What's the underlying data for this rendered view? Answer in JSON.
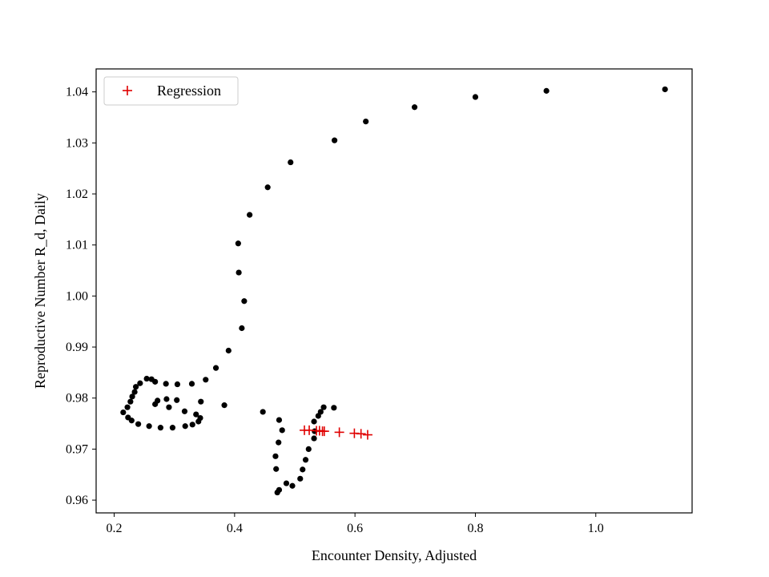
{
  "chart_data": {
    "type": "scatter",
    "xlabel": "Encounter Density, Adjusted",
    "ylabel": "Reproductive Number R_d, Daily",
    "xlim": [
      0.17,
      1.16
    ],
    "ylim": [
      0.9575,
      1.0445
    ],
    "xticks": [
      0.2,
      0.4,
      0.6,
      0.8,
      1.0
    ],
    "xtick_labels": [
      "0.2",
      "0.4",
      "0.6",
      "0.8",
      "1.0"
    ],
    "yticks": [
      0.96,
      0.97,
      0.98,
      0.99,
      1.0,
      1.01,
      1.02,
      1.03,
      1.04
    ],
    "ytick_labels": [
      "0.96",
      "0.97",
      "0.98",
      "0.99",
      "1.00",
      "1.01",
      "1.02",
      "1.03",
      "1.04"
    ],
    "grid": false,
    "legend": {
      "position": "upper-left",
      "entries": [
        "Regression"
      ]
    },
    "series": [
      {
        "marker": "dot",
        "color": "#000000",
        "points": [
          [
            1.115,
            1.0405
          ],
          [
            0.918,
            1.0402
          ],
          [
            0.8,
            1.039
          ],
          [
            0.699,
            1.037
          ],
          [
            0.618,
            1.0342
          ],
          [
            0.566,
            1.0305
          ],
          [
            0.493,
            1.0262
          ],
          [
            0.455,
            1.0213
          ],
          [
            0.425,
            1.0159
          ],
          [
            0.406,
            1.0103
          ],
          [
            0.407,
            1.0046
          ],
          [
            0.416,
            0.999
          ],
          [
            0.412,
            0.9937
          ],
          [
            0.39,
            0.9893
          ],
          [
            0.369,
            0.9859
          ],
          [
            0.352,
            0.9836
          ],
          [
            0.329,
            0.9828
          ],
          [
            0.305,
            0.9827
          ],
          [
            0.286,
            0.9828
          ],
          [
            0.268,
            0.9832
          ],
          [
            0.262,
            0.9837
          ],
          [
            0.254,
            0.9838
          ],
          [
            0.243,
            0.9829
          ],
          [
            0.236,
            0.9822
          ],
          [
            0.234,
            0.9812
          ],
          [
            0.23,
            0.9803
          ],
          [
            0.227,
            0.9793
          ],
          [
            0.222,
            0.9782
          ],
          [
            0.215,
            0.9772
          ],
          [
            0.223,
            0.9762
          ],
          [
            0.229,
            0.9756
          ],
          [
            0.24,
            0.9749
          ],
          [
            0.258,
            0.9745
          ],
          [
            0.277,
            0.9742
          ],
          [
            0.297,
            0.9742
          ],
          [
            0.318,
            0.9745
          ],
          [
            0.33,
            0.9748
          ],
          [
            0.34,
            0.9754
          ],
          [
            0.343,
            0.9761
          ],
          [
            0.336,
            0.9768
          ],
          [
            0.317,
            0.9774
          ],
          [
            0.291,
            0.9782
          ],
          [
            0.268,
            0.9788
          ],
          [
            0.272,
            0.9795
          ],
          [
            0.287,
            0.9798
          ],
          [
            0.304,
            0.9796
          ],
          [
            0.344,
            0.9793
          ],
          [
            0.383,
            0.9786
          ],
          [
            0.447,
            0.9773
          ],
          [
            0.474,
            0.9757
          ],
          [
            0.479,
            0.9737
          ],
          [
            0.473,
            0.9713
          ],
          [
            0.468,
            0.9686
          ],
          [
            0.469,
            0.9661
          ],
          [
            0.474,
            0.962
          ],
          [
            0.471,
            0.9615
          ],
          [
            0.486,
            0.9633
          ],
          [
            0.496,
            0.9628
          ],
          [
            0.509,
            0.9642
          ],
          [
            0.513,
            0.966
          ],
          [
            0.518,
            0.9679
          ],
          [
            0.523,
            0.97
          ],
          [
            0.532,
            0.9721
          ],
          [
            0.533,
            0.9735
          ],
          [
            0.532,
            0.9754
          ],
          [
            0.539,
            0.9765
          ],
          [
            0.543,
            0.9773
          ],
          [
            0.548,
            0.9782
          ],
          [
            0.565,
            0.9781
          ]
        ]
      },
      {
        "name": "Regression",
        "marker": "plus",
        "color": "#e00000",
        "points": [
          [
            0.516,
            0.9737
          ],
          [
            0.524,
            0.9737
          ],
          [
            0.536,
            0.9736
          ],
          [
            0.541,
            0.9736
          ],
          [
            0.546,
            0.9735
          ],
          [
            0.549,
            0.9735
          ],
          [
            0.574,
            0.9733
          ],
          [
            0.599,
            0.9731
          ],
          [
            0.61,
            0.973
          ],
          [
            0.621,
            0.9728
          ]
        ]
      }
    ]
  }
}
